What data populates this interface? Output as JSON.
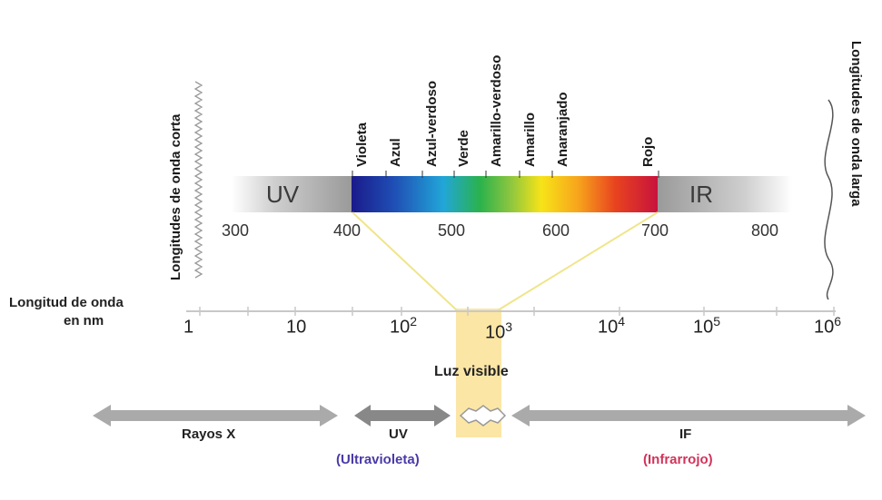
{
  "short_wavelengths": "Longitudes de onda corta",
  "long_wavelengths": "Longitudes de onda larga",
  "axis_label_line1": "Longitud de onda",
  "axis_label_line2": "en nm",
  "visible_band": {
    "uv": "UV",
    "ir": "IR",
    "ticks": [
      "300",
      "400",
      "500",
      "600",
      "700",
      "800"
    ],
    "colors": [
      "Violeta",
      "Azul",
      "Azul-verdoso",
      "Verde",
      "Amarillo-verdoso",
      "Amarillo",
      "Anaranjado",
      "Rojo"
    ]
  },
  "log_axis": {
    "ticks": [
      {
        "base": "1",
        "exp": ""
      },
      {
        "base": "10",
        "exp": ""
      },
      {
        "base": "10",
        "exp": "2"
      },
      {
        "base": "10",
        "exp": "3"
      },
      {
        "base": "10",
        "exp": "4"
      },
      {
        "base": "10",
        "exp": "5"
      },
      {
        "base": "10",
        "exp": "6"
      }
    ]
  },
  "visible_light_label": "Luz visible",
  "regions": {
    "xray": "Rayos X",
    "uv": "UV",
    "uv_full": "(Ultravioleta)",
    "if": "IF",
    "if_full": "(Infrarrojo)"
  },
  "colors": {
    "uv_name": "#4a3aa8",
    "ir_name": "#d2335a",
    "arrow": "#a9a9a9",
    "highlight": "#fbe6a6",
    "guide": "#f0e58a"
  }
}
